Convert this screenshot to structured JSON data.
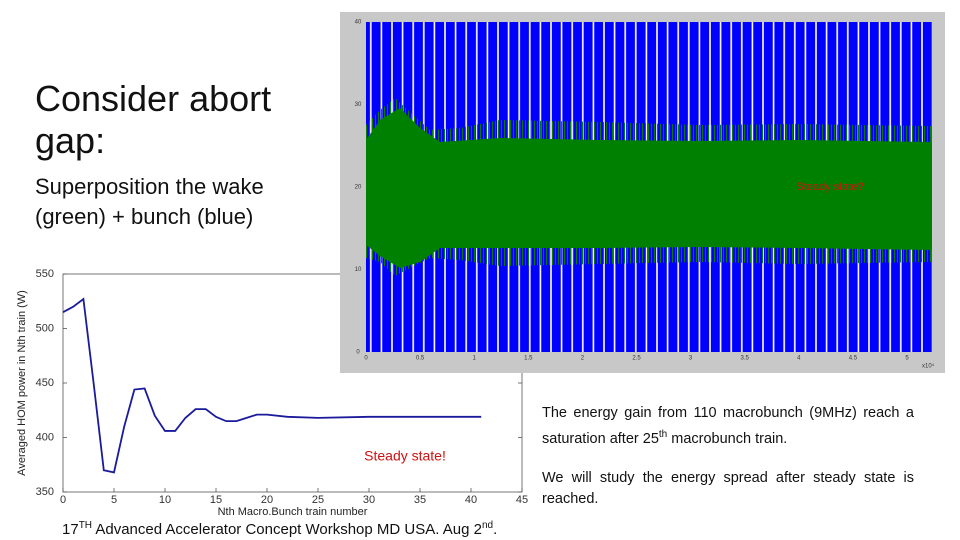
{
  "title": "Consider abort gap:",
  "subtitle": "Superposition the wake (green) + bunch (blue)",
  "body": {
    "p1": [
      "The energy gain from 110 macrobunch (9MHz) reach a saturation after 25",
      "th",
      " macrobunch train."
    ],
    "p2": "We will study the energy spread after steady state is reached."
  },
  "footer": [
    "17",
    "TH",
    " Advanced Accelerator Concept Workshop MD USA. Aug 2",
    "nd",
    "."
  ],
  "inset": {
    "annotation": "Steady state?",
    "yticks": [
      "40",
      "30",
      "20",
      "10",
      "0"
    ],
    "xticks": [
      "0",
      "0.5",
      "1",
      "1.5",
      "2",
      "2.5",
      "3",
      "3.5",
      "4",
      "4.5",
      "5"
    ],
    "x_multiplier": "x10⁴"
  },
  "chart_data": {
    "type": "line",
    "xlabel": "Nth Macro.Bunch train number",
    "ylabel": "Averaged HOM power in Nth train (W)",
    "annotation": "Steady state!",
    "color": "#1a1a9c",
    "x": [
      0,
      1,
      2,
      3,
      4,
      5,
      6,
      7,
      8,
      9,
      10,
      11,
      12,
      13,
      14,
      15,
      16,
      17,
      18,
      19,
      20,
      22,
      25,
      30,
      35,
      41
    ],
    "values": [
      515,
      520,
      527,
      450,
      370,
      368,
      410,
      444,
      445,
      420,
      406,
      406,
      418,
      426,
      426,
      419,
      415,
      415,
      418,
      421,
      421,
      419,
      418,
      419,
      419,
      419
    ],
    "xlim": [
      0,
      45
    ],
    "ylim": [
      350,
      550
    ],
    "xticks": [
      0,
      5,
      10,
      15,
      20,
      25,
      30,
      35,
      40,
      45
    ],
    "yticks": [
      350,
      400,
      450,
      500,
      550
    ],
    "grid": false
  }
}
